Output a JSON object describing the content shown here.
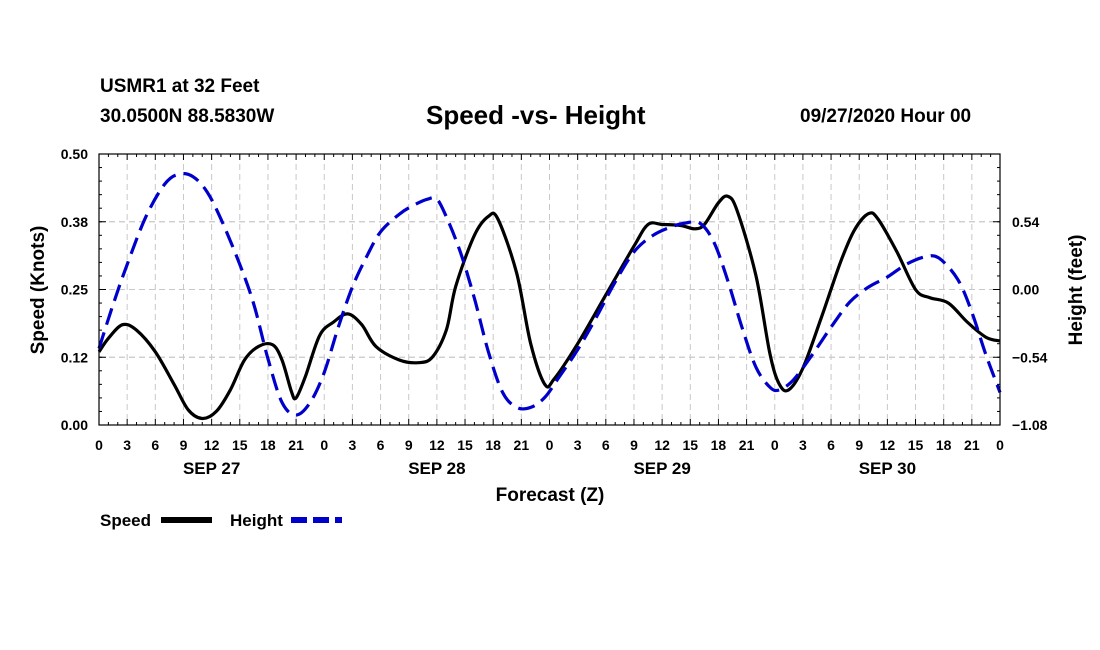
{
  "header": {
    "station": "USMR1 at 32 Feet",
    "coords": "30.0500N 88.5830W",
    "title": "Speed -vs- Height",
    "datestamp": "09/27/2020 Hour 00"
  },
  "chart_data": {
    "type": "line",
    "title": "Speed -vs- Height",
    "xlabel": "Forecast (Z)",
    "ylabel_left": "Speed (Knots)",
    "ylabel_right": "Height (feet)",
    "xlim": [
      0,
      96
    ],
    "ylim_left": [
      0,
      0.5
    ],
    "ylim_right": [
      -1.08,
      1.08
    ],
    "left_ticks": [
      {
        "value": 0.0,
        "label": "0.00"
      },
      {
        "value": 0.125,
        "label": "0.12"
      },
      {
        "value": 0.25,
        "label": "0.25"
      },
      {
        "value": 0.375,
        "label": "0.38"
      },
      {
        "value": 0.5,
        "label": "0.50"
      }
    ],
    "right_ticks": [
      {
        "value": -1.08,
        "label": "−1.08"
      },
      {
        "value": -0.54,
        "label": "−0.54"
      },
      {
        "value": 0.0,
        "label": "0.00"
      },
      {
        "value": 0.54,
        "label": "0.54"
      }
    ],
    "x_tick_labels": [
      "0",
      "3",
      "6",
      "9",
      "12",
      "15",
      "18",
      "21",
      "0",
      "3",
      "6",
      "9",
      "12",
      "15",
      "18",
      "21",
      "0",
      "3",
      "6",
      "9",
      "12",
      "15",
      "18",
      "21",
      "0",
      "3",
      "6",
      "9",
      "12",
      "15",
      "18",
      "21",
      "0"
    ],
    "date_labels": [
      {
        "label": "SEP 27",
        "hour": 12
      },
      {
        "label": "SEP 28",
        "hour": 36
      },
      {
        "label": "SEP 29",
        "hour": 60
      },
      {
        "label": "SEP 30",
        "hour": 84
      }
    ],
    "grid": true,
    "legend": "bottom-left",
    "series": [
      {
        "name": "Speed",
        "axis": "left",
        "color": "#000000",
        "style": "solid",
        "points": [
          [
            0,
            0.135
          ],
          [
            1,
            0.16
          ],
          [
            2.5,
            0.185
          ],
          [
            4,
            0.175
          ],
          [
            6,
            0.135
          ],
          [
            8,
            0.075
          ],
          [
            9.5,
            0.028
          ],
          [
            11,
            0.012
          ],
          [
            12.5,
            0.025
          ],
          [
            14,
            0.065
          ],
          [
            15.5,
            0.12
          ],
          [
            17,
            0.145
          ],
          [
            18.5,
            0.148
          ],
          [
            19.5,
            0.12
          ],
          [
            20.5,
            0.062
          ],
          [
            21,
            0.05
          ],
          [
            22,
            0.09
          ],
          [
            23.5,
            0.165
          ],
          [
            25,
            0.19
          ],
          [
            26.5,
            0.205
          ],
          [
            28,
            0.185
          ],
          [
            29.5,
            0.145
          ],
          [
            32,
            0.12
          ],
          [
            34,
            0.115
          ],
          [
            35.5,
            0.125
          ],
          [
            37,
            0.175
          ],
          [
            38,
            0.255
          ],
          [
            40,
            0.35
          ],
          [
            41.5,
            0.385
          ],
          [
            42.5,
            0.38
          ],
          [
            44.5,
            0.28
          ],
          [
            46,
            0.15
          ],
          [
            47.5,
            0.075
          ],
          [
            48.5,
            0.085
          ],
          [
            51,
            0.15
          ],
          [
            54,
            0.24
          ],
          [
            57,
            0.33
          ],
          [
            58.5,
            0.37
          ],
          [
            60,
            0.37
          ],
          [
            62,
            0.368
          ],
          [
            63.5,
            0.362
          ],
          [
            64.5,
            0.37
          ],
          [
            66,
            0.41
          ],
          [
            67,
            0.422
          ],
          [
            68,
            0.395
          ],
          [
            70,
            0.275
          ],
          [
            71.5,
            0.13
          ],
          [
            72.5,
            0.075
          ],
          [
            73.5,
            0.065
          ],
          [
            75,
            0.105
          ],
          [
            77,
            0.2
          ],
          [
            79,
            0.3
          ],
          [
            80.5,
            0.36
          ],
          [
            82,
            0.39
          ],
          [
            83,
            0.38
          ],
          [
            85,
            0.32
          ],
          [
            87,
            0.25
          ],
          [
            88.5,
            0.235
          ],
          [
            90.5,
            0.225
          ],
          [
            92.5,
            0.19
          ],
          [
            94.5,
            0.162
          ],
          [
            96,
            0.155
          ]
        ]
      },
      {
        "name": "Height",
        "axis": "right",
        "color": "#0000cc",
        "style": "dashed",
        "points": [
          [
            0,
            -0.47
          ],
          [
            1.5,
            -0.12
          ],
          [
            3,
            0.2
          ],
          [
            5,
            0.58
          ],
          [
            7,
            0.84
          ],
          [
            8.5,
            0.92
          ],
          [
            10,
            0.9
          ],
          [
            11.5,
            0.78
          ],
          [
            13,
            0.56
          ],
          [
            15,
            0.2
          ],
          [
            16.5,
            -0.12
          ],
          [
            18,
            -0.55
          ],
          [
            19.5,
            -0.9
          ],
          [
            21,
            -1.0
          ],
          [
            22.5,
            -0.9
          ],
          [
            24,
            -0.66
          ],
          [
            25.5,
            -0.3
          ],
          [
            27,
            0.02
          ],
          [
            28.5,
            0.26
          ],
          [
            30,
            0.46
          ],
          [
            32,
            0.6
          ],
          [
            33.5,
            0.67
          ],
          [
            35,
            0.72
          ],
          [
            36,
            0.72
          ],
          [
            37,
            0.58
          ],
          [
            38.5,
            0.3
          ],
          [
            40,
            -0.07
          ],
          [
            41.5,
            -0.5
          ],
          [
            43,
            -0.82
          ],
          [
            44.5,
            -0.94
          ],
          [
            46,
            -0.94
          ],
          [
            47.5,
            -0.86
          ],
          [
            49,
            -0.7
          ],
          [
            51,
            -0.48
          ],
          [
            53,
            -0.22
          ],
          [
            55,
            0.06
          ],
          [
            57,
            0.3
          ],
          [
            59,
            0.43
          ],
          [
            61,
            0.5
          ],
          [
            62.5,
            0.53
          ],
          [
            64,
            0.53
          ],
          [
            65.5,
            0.38
          ],
          [
            67,
            0.07
          ],
          [
            68.5,
            -0.3
          ],
          [
            70,
            -0.62
          ],
          [
            71.5,
            -0.78
          ],
          [
            72.5,
            -0.8
          ],
          [
            74,
            -0.72
          ],
          [
            76,
            -0.52
          ],
          [
            78,
            -0.3
          ],
          [
            80,
            -0.1
          ],
          [
            82,
            0.02
          ],
          [
            84,
            0.1
          ],
          [
            86,
            0.2
          ],
          [
            88,
            0.26
          ],
          [
            89.5,
            0.25
          ],
          [
            91.5,
            0.08
          ],
          [
            93,
            -0.18
          ],
          [
            94.5,
            -0.52
          ],
          [
            96,
            -0.82
          ]
        ]
      }
    ]
  }
}
